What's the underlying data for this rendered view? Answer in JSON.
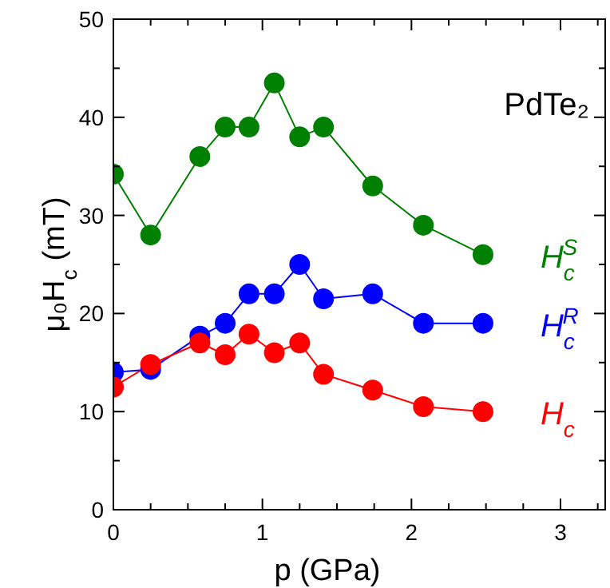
{
  "chart_data": {
    "type": "line",
    "xlabel": "p (GPa)",
    "ylabel": "μ₀H$_{c}$ (mT)",
    "annotations": [
      "PdTe₂"
    ],
    "x": [
      0,
      0.25,
      0.58,
      0.75,
      0.91,
      1.08,
      1.25,
      1.41,
      1.74,
      2.08,
      2.48
    ],
    "series": [
      {
        "name": "H$_{c}$$^{S}$",
        "color": "#008000",
        "values": [
          34.2,
          28,
          36,
          39,
          39,
          43.5,
          38,
          39,
          33,
          29,
          26
        ]
      },
      {
        "name": "H$_{c}$$^{R}$",
        "color": "#0000ff",
        "values": [
          14,
          14.3,
          17.7,
          19,
          22,
          22,
          25,
          21.5,
          22,
          19,
          19
        ]
      },
      {
        "name": "H$_{c}$",
        "color": "#ff0000",
        "values": [
          12.5,
          14.8,
          17,
          15.8,
          17.9,
          16,
          17,
          13.8,
          12.2,
          10.5,
          10
        ]
      }
    ],
    "xlim": [
      0,
      3.3
    ],
    "xticks": [
      0,
      {
        "value": 0.25,
        "label": null
      },
      {
        "value": 0.5,
        "label": null
      },
      {
        "value": 0.75,
        "label": null
      },
      1,
      {
        "value": 1.25,
        "label": null
      },
      {
        "value": 1.5,
        "label": null
      },
      {
        "value": 1.75,
        "label": null
      },
      2,
      {
        "value": 2.25,
        "label": null
      },
      {
        "value": 2.5,
        "label": null
      },
      {
        "value": 2.75,
        "label": null
      },
      3,
      {
        "value": 3.25,
        "label": null
      }
    ],
    "ylim": [
      0,
      50
    ],
    "yticks": [
      0,
      {
        "value": 5,
        "label": null
      },
      10,
      {
        "value": 15,
        "label": null
      },
      20,
      {
        "value": 25,
        "label": null
      },
      30,
      {
        "value": 35,
        "label": null
      },
      40,
      {
        "value": 45,
        "label": null
      },
      50
    ],
    "marker": "circle",
    "line_style": "solid"
  }
}
